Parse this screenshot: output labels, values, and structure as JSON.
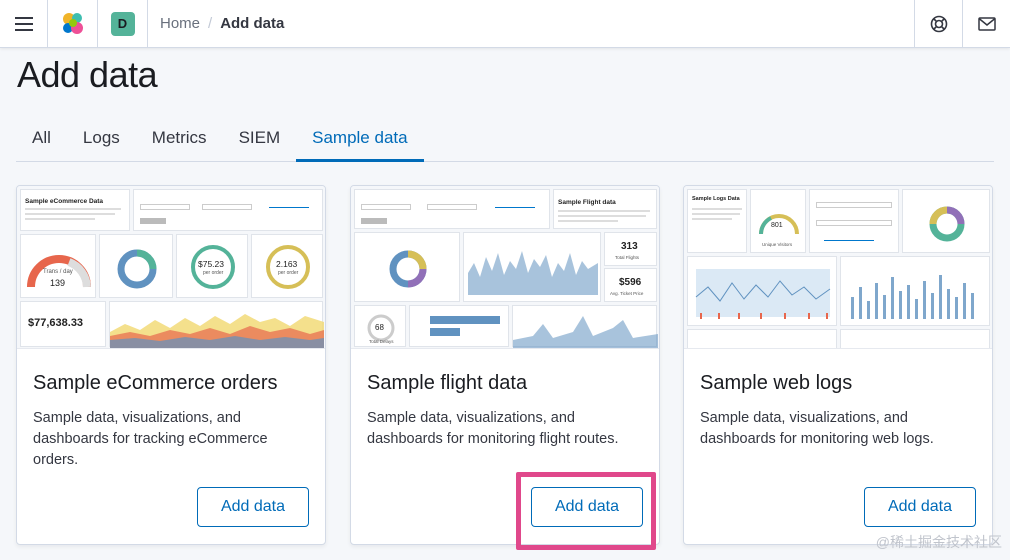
{
  "header": {
    "space_initial": "D",
    "breadcrumbs": {
      "home": "Home",
      "separator": "/",
      "current": "Add data"
    },
    "colors": {
      "space_avatar": "#54b399"
    }
  },
  "page": {
    "title": "Add data"
  },
  "tabs": [
    {
      "label": "All",
      "selected": false
    },
    {
      "label": "Logs",
      "selected": false
    },
    {
      "label": "Metrics",
      "selected": false
    },
    {
      "label": "SIEM",
      "selected": false
    },
    {
      "label": "Sample data",
      "selected": true
    }
  ],
  "cards": [
    {
      "title": "Sample eCommerce orders",
      "description": "Sample data, visualizations, and dashboards for tracking eCommerce orders.",
      "button_label": "Add data",
      "thumb": {
        "heading": "Sample eCommerce Data",
        "gauge_label": "Trans / day",
        "gauge_value": "139",
        "avg_sales": "$75.23",
        "avg_sales_label": "per order",
        "avg_sold": "2.163",
        "avg_sold_label": "per order",
        "revenue": "$77,638.33"
      }
    },
    {
      "title": "Sample flight data",
      "description": "Sample data, visualizations, and dashboards for monitoring flight routes.",
      "button_label": "Add data",
      "thumb": {
        "heading": "Sample Flight data",
        "total_flights": "313",
        "total_flights_label": "Total Flights",
        "avg_price": "$596",
        "avg_price_label": "Avg. Ticket Price",
        "delays": "68",
        "delays_label": "Total Delays"
      }
    },
    {
      "title": "Sample web logs",
      "description": "Sample data, visualizations, and dashboards for monitoring web logs.",
      "button_label": "Add data",
      "thumb": {
        "heading": "Sample Logs Data",
        "visitors": "801",
        "visitors_label": "Unique Visitors"
      }
    }
  ],
  "watermark": "@稀土掘金技术社区",
  "accent_color": "#006bb8",
  "highlight_color": "#e0488b"
}
